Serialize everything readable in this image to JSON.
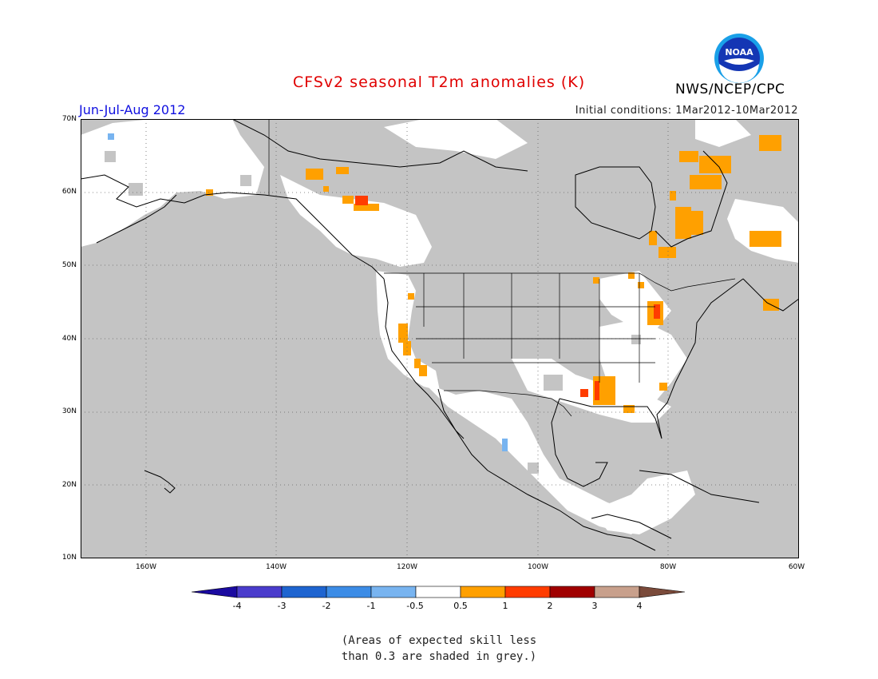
{
  "title": "CFSv2 seasonal T2m anomalies (K)",
  "period": "Jun-Jul-Aug 2012",
  "initial_conditions": "Initial conditions: 1Mar2012-10Mar2012",
  "agency": "NWS/NCEP/CPC",
  "logo_text": "NOAA",
  "lat_labels": [
    "70N",
    "60N",
    "50N",
    "40N",
    "30N",
    "20N",
    "10N"
  ],
  "lon_labels": [
    "160W",
    "140W",
    "120W",
    "100W",
    "80W",
    "60W"
  ],
  "colorbar": {
    "labels": [
      "-4",
      "-3",
      "-2",
      "-1",
      "-0.5",
      "0.5",
      "1",
      "2",
      "3",
      "4"
    ],
    "colors": [
      "#1a0aa0",
      "#4a3ccc",
      "#1e64d0",
      "#3c8ce6",
      "#78b4f0",
      "#ffffff",
      "#ffa000",
      "#ff3c00",
      "#a00000",
      "#c8a08c",
      "#7a4a3a"
    ]
  },
  "note_line1": "(Areas of expected skill less",
  "note_line2": "than 0.3 are shaded in grey.)",
  "colors": {
    "grey_mask": "#c4c4c4",
    "land_white": "#ffffff",
    "coast": "#000000"
  }
}
